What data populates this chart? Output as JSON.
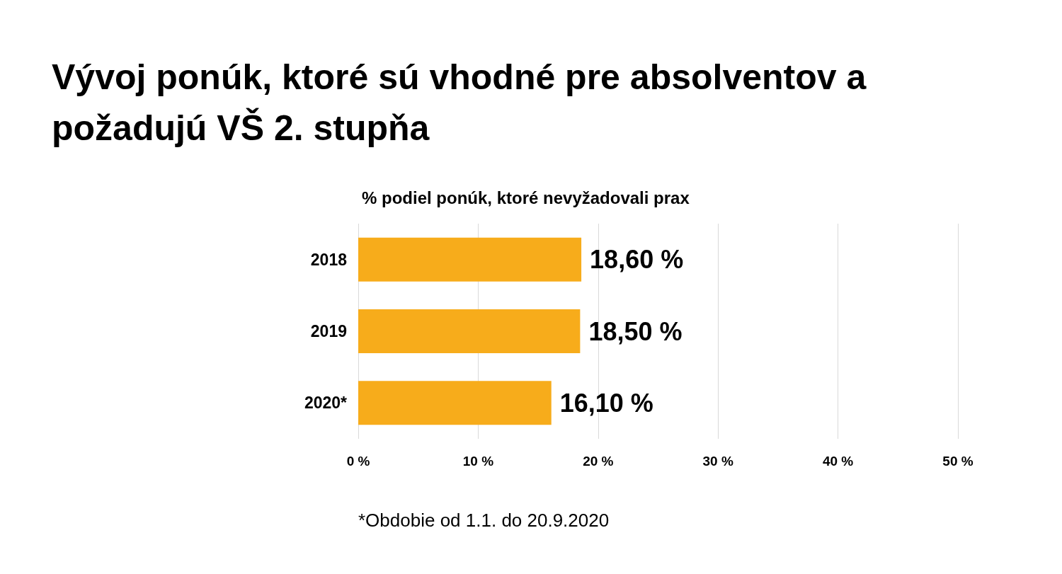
{
  "chart_data": {
    "type": "bar",
    "orientation": "horizontal",
    "title": "Vývoj ponúk, ktoré sú vhodné pre absolventov a požadujú VŠ 2. stupňa",
    "subtitle": "% podiel ponúk, ktoré nevyžadovali prax",
    "categories": [
      "2018",
      "2019",
      "2020*"
    ],
    "values": [
      18.6,
      18.5,
      16.1
    ],
    "value_labels": [
      "18,60 %",
      "18,50 %",
      "16,10 %"
    ],
    "color": "#f7ac1b",
    "xlim": [
      0,
      50
    ],
    "xticks": [
      {
        "value": 0,
        "label": "0 %"
      },
      {
        "value": 10,
        "label": "10 %"
      },
      {
        "value": 20,
        "label": "20 %"
      },
      {
        "value": 30,
        "label": "30 %"
      },
      {
        "value": 40,
        "label": "40 %"
      },
      {
        "value": 50,
        "label": "50 %"
      }
    ],
    "grid": "x",
    "annotations": [
      "*Obdobie od 1.1. do 20.9.2020"
    ]
  }
}
